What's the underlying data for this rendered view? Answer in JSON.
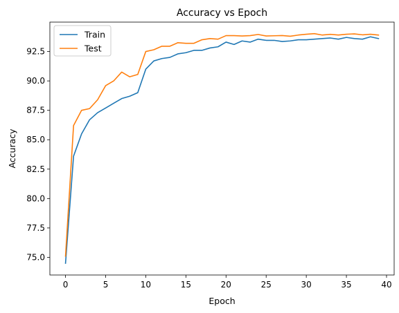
{
  "chart_data": {
    "type": "line",
    "title": "Accuracy vs Epoch",
    "xlabel": "Epoch",
    "ylabel": "Accuracy",
    "xlim": [
      -1.95,
      40.95
    ],
    "ylim": [
      73.5,
      95.0
    ],
    "xticks": [
      0,
      5,
      10,
      15,
      20,
      25,
      30,
      35,
      40
    ],
    "yticks": [
      75.0,
      77.5,
      80.0,
      82.5,
      85.0,
      87.5,
      90.0,
      92.5
    ],
    "ytick_labels": [
      "75.0",
      "77.5",
      "80.0",
      "82.5",
      "85.0",
      "87.5",
      "90.0",
      "92.5"
    ],
    "grid": false,
    "legend_position": "top-left",
    "x": [
      0,
      1,
      2,
      3,
      4,
      5,
      6,
      7,
      8,
      9,
      10,
      11,
      12,
      13,
      14,
      15,
      16,
      17,
      18,
      19,
      20,
      21,
      22,
      23,
      24,
      25,
      26,
      27,
      28,
      29,
      30,
      31,
      32,
      33,
      34,
      35,
      36,
      37,
      38,
      39
    ],
    "series": [
      {
        "name": "Train",
        "color": "#1f77b4",
        "values": [
          74.5,
          83.6,
          85.5,
          86.7,
          87.3,
          87.7,
          88.1,
          88.5,
          88.7,
          89.0,
          91.0,
          91.7,
          91.9,
          92.0,
          92.3,
          92.4,
          92.6,
          92.6,
          92.8,
          92.9,
          93.3,
          93.1,
          93.4,
          93.3,
          93.55,
          93.45,
          93.45,
          93.35,
          93.4,
          93.5,
          93.5,
          93.55,
          93.6,
          93.65,
          93.55,
          93.7,
          93.6,
          93.55,
          93.75,
          93.6
        ]
      },
      {
        "name": "Test",
        "color": "#ff7f0e",
        "values": [
          75.1,
          86.2,
          87.5,
          87.65,
          88.4,
          89.6,
          90.0,
          90.75,
          90.35,
          90.55,
          92.5,
          92.65,
          92.95,
          92.95,
          93.25,
          93.2,
          93.2,
          93.5,
          93.6,
          93.55,
          93.85,
          93.85,
          93.82,
          93.85,
          93.95,
          93.82,
          93.84,
          93.86,
          93.8,
          93.9,
          93.97,
          94.02,
          93.9,
          93.96,
          93.9,
          93.97,
          94.0,
          93.92,
          93.97,
          93.9
        ]
      }
    ]
  }
}
